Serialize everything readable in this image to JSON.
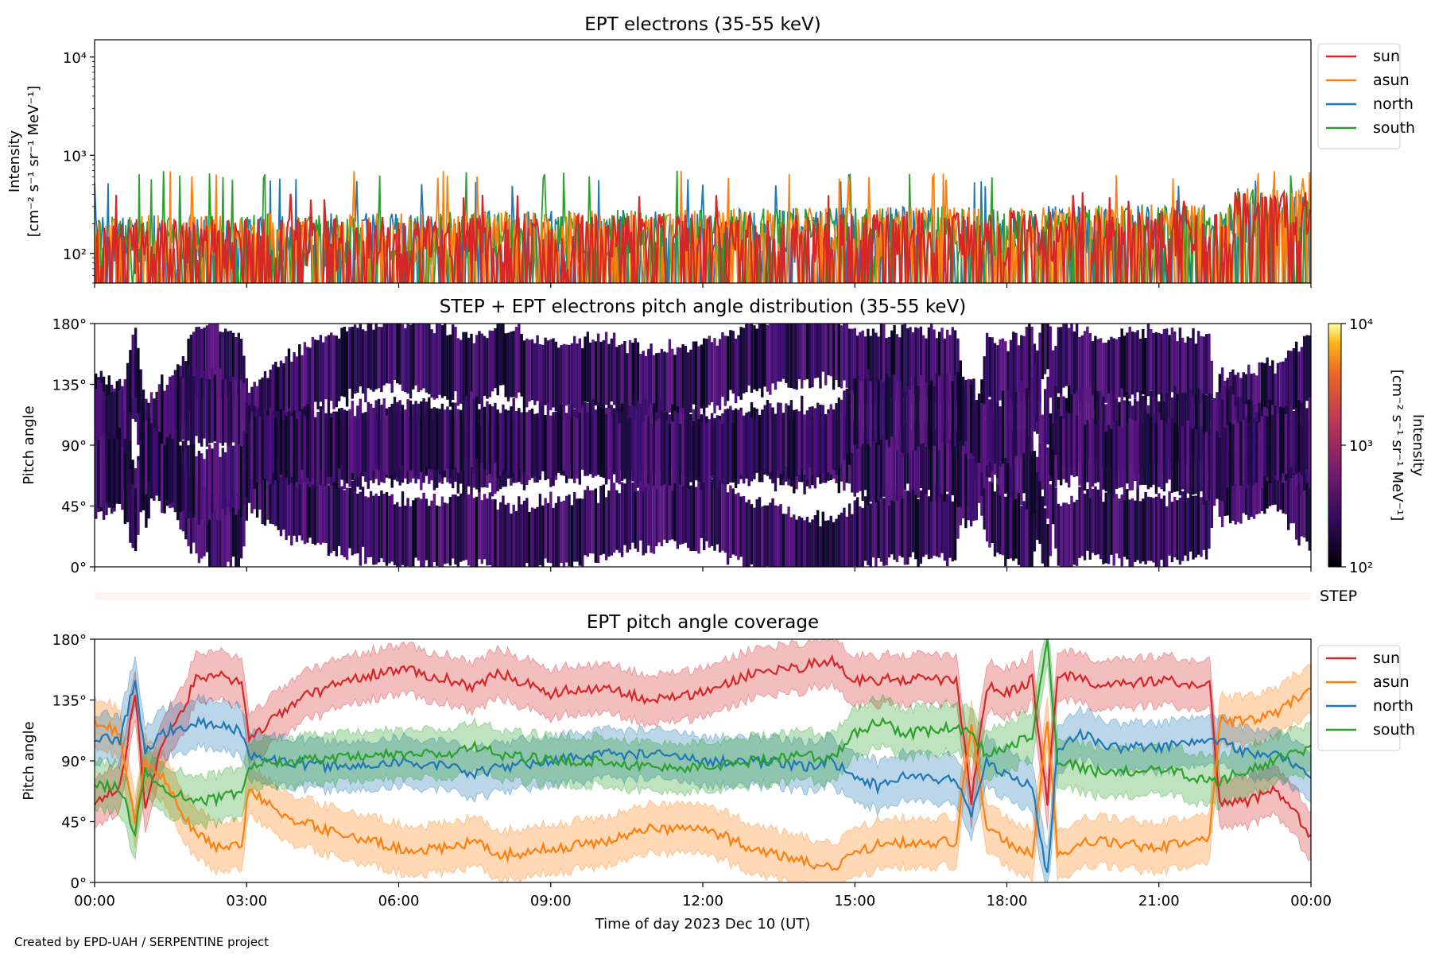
{
  "credit": "Created by EPD-UAH / SERPENTINE project",
  "xlabel": "Time of day 2023 Dec 10 (UT)",
  "colors": {
    "sun": "#d62728",
    "asun": "#ff7f0e",
    "north": "#1f77b4",
    "south": "#2ca02c",
    "step_bar": "#fff4ef"
  },
  "step_label": "STEP",
  "chart_data": [
    {
      "type": "line",
      "title": "EPT electrons (35-55 keV)",
      "ylabel_line1": "Intensity",
      "ylabel_line2": "[cm⁻² s⁻¹ sr⁻¹ MeV⁻¹]",
      "yscale": "log",
      "ylim": [
        50,
        15000
      ],
      "yticks": [
        {
          "label": "10²",
          "value": 100
        },
        {
          "label": "10³",
          "value": 1000
        },
        {
          "label": "10⁴",
          "value": 10000
        }
      ],
      "xlim_hours": [
        0,
        24
      ],
      "legend_position": "outside-right-top",
      "series": [
        {
          "name": "sun",
          "color": "#d62728",
          "baseline": 100,
          "spike_max": 420
        },
        {
          "name": "asun",
          "color": "#ff7f0e",
          "baseline": 110,
          "spike_max": 700
        },
        {
          "name": "north",
          "color": "#1f77b4",
          "baseline": 110,
          "spike_max": 580
        },
        {
          "name": "south",
          "color": "#2ca02c",
          "baseline": 110,
          "spike_max": 700
        }
      ]
    },
    {
      "type": "heatmap",
      "title": "STEP + EPT electrons pitch angle distribution (35-55 keV)",
      "ylabel": "Pitch angle",
      "ylim": [
        0,
        180
      ],
      "yticks": [
        "0°",
        "45°",
        "90°",
        "135°",
        "180°"
      ],
      "colorbar": {
        "scale": "log",
        "range": [
          100,
          10000
        ],
        "ticks": [
          "10²",
          "10³",
          "10⁴"
        ],
        "label_line1": "Intensity",
        "label_line2": "[cm⁻² s⁻¹ sr⁻¹ MeV⁻¹]"
      }
    },
    {
      "type": "line",
      "title": "EPT pitch angle coverage",
      "ylabel": "Pitch angle",
      "ylim": [
        0,
        180
      ],
      "yticks": [
        "0°",
        "45°",
        "90°",
        "135°",
        "180°"
      ],
      "xticks": [
        "00:00",
        "03:00",
        "06:00",
        "09:00",
        "12:00",
        "15:00",
        "18:00",
        "21:00",
        "00:00"
      ],
      "legend_position": "outside-right-top",
      "band_halfwidth": 18,
      "series": [
        {
          "name": "sun",
          "color": "#d62728",
          "x": [
            0,
            0.5,
            0.8,
            1.0,
            1.3,
            1.7,
            2.0,
            2.5,
            2.9,
            3.05,
            3.5,
            4.0,
            5.0,
            6.0,
            7.0,
            7.5,
            8.0,
            9.0,
            10.0,
            11.0,
            12.0,
            13.0,
            14.0,
            14.5,
            15.0,
            15.5,
            16.0,
            17.0,
            17.3,
            17.6,
            18.0,
            18.5,
            18.8,
            19.0,
            19.5,
            20.0,
            21.0,
            22.0,
            22.2,
            22.8,
            23.3,
            24.0
          ],
          "y": [
            60,
            70,
            140,
            55,
            100,
            125,
            150,
            155,
            145,
            105,
            120,
            135,
            150,
            158,
            150,
            145,
            155,
            140,
            145,
            135,
            140,
            155,
            160,
            165,
            150,
            150,
            150,
            150,
            60,
            145,
            140,
            150,
            60,
            155,
            150,
            145,
            150,
            145,
            60,
            60,
            70,
            35
          ]
        },
        {
          "name": "asun",
          "color": "#ff7f0e",
          "x": [
            0,
            0.5,
            0.8,
            1.0,
            1.3,
            1.7,
            2.0,
            2.5,
            2.9,
            3.05,
            3.5,
            4.0,
            5.0,
            6.0,
            7.0,
            7.5,
            8.0,
            9.0,
            10.0,
            11.0,
            12.0,
            13.0,
            14.0,
            14.5,
            15.0,
            15.5,
            16.0,
            17.0,
            17.3,
            17.6,
            18.0,
            18.5,
            18.8,
            19.0,
            19.5,
            20.0,
            21.0,
            22.0,
            22.2,
            22.8,
            23.3,
            24.0
          ],
          "y": [
            120,
            110,
            45,
            90,
            80,
            55,
            35,
            25,
            30,
            70,
            55,
            45,
            35,
            25,
            25,
            30,
            20,
            25,
            30,
            40,
            40,
            25,
            15,
            10,
            20,
            30,
            30,
            30,
            120,
            40,
            30,
            20,
            120,
            20,
            30,
            30,
            25,
            35,
            120,
            120,
            125,
            145
          ]
        },
        {
          "name": "north",
          "color": "#1f77b4",
          "x": [
            0,
            0.5,
            0.8,
            1.0,
            1.3,
            1.7,
            2.0,
            2.5,
            2.9,
            3.05,
            3.5,
            4.0,
            5.0,
            6.0,
            7.0,
            7.5,
            8.0,
            9.0,
            10.0,
            11.0,
            12.0,
            13.0,
            14.0,
            14.5,
            15.0,
            15.5,
            16.0,
            17.0,
            17.3,
            17.6,
            18.0,
            18.5,
            18.8,
            19.0,
            19.5,
            20.0,
            21.0,
            22.0,
            22.2,
            22.8,
            23.3,
            24.0
          ],
          "y": [
            108,
            105,
            150,
            95,
            110,
            115,
            118,
            115,
            112,
            95,
            90,
            88,
            85,
            90,
            85,
            80,
            85,
            90,
            95,
            95,
            90,
            90,
            85,
            90,
            80,
            70,
            80,
            75,
            50,
            90,
            80,
            70,
            5,
            100,
            110,
            100,
            100,
            105,
            105,
            95,
            95,
            80
          ]
        },
        {
          "name": "south",
          "color": "#2ca02c",
          "x": [
            0,
            0.5,
            0.8,
            1.0,
            1.3,
            1.7,
            2.0,
            2.5,
            2.9,
            3.05,
            3.5,
            4.0,
            5.0,
            6.0,
            7.0,
            7.5,
            8.0,
            9.0,
            10.0,
            11.0,
            12.0,
            13.0,
            14.0,
            14.5,
            15.0,
            15.5,
            16.0,
            17.0,
            17.3,
            17.6,
            18.0,
            18.5,
            18.8,
            19.0,
            19.5,
            20.0,
            21.0,
            22.0,
            22.2,
            22.8,
            23.3,
            24.0
          ],
          "y": [
            72,
            70,
            35,
            85,
            70,
            65,
            60,
            62,
            68,
            85,
            90,
            90,
            92,
            95,
            95,
            100,
            95,
            90,
            90,
            85,
            85,
            90,
            95,
            90,
            110,
            120,
            110,
            115,
            110,
            95,
            100,
            110,
            180,
            90,
            85,
            80,
            85,
            75,
            75,
            85,
            90,
            100
          ]
        }
      ]
    }
  ]
}
